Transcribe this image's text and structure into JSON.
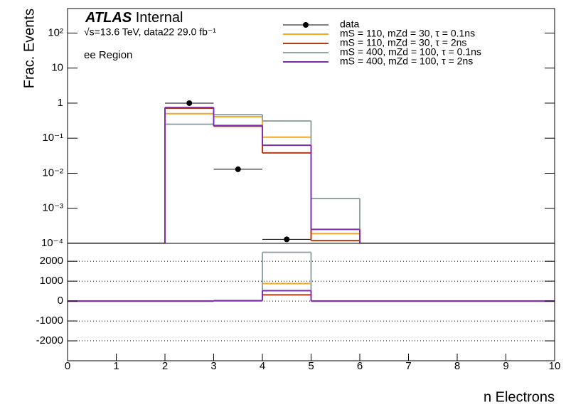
{
  "chart_data": [
    {
      "type": "histogram",
      "atlas_label": "ATLAS",
      "status": "Internal",
      "subtitle": "√s=13.6 TeV, data22 29.0 fb⁻¹",
      "annotation": "ee Region",
      "ylabel": "Frac. Events",
      "log_y": true,
      "legend": "upper right",
      "bins": [
        0,
        1,
        2,
        3,
        4,
        5,
        6,
        7,
        8,
        9,
        10
      ],
      "xlim": [
        0,
        10
      ],
      "ylim": [
        0.0001,
        500
      ],
      "yticks": [
        {
          "value": 0.0001,
          "label": "10⁻⁴"
        },
        {
          "value": 0.001,
          "label": "10⁻³"
        },
        {
          "value": 0.01,
          "label": "10⁻²"
        },
        {
          "value": 0.1,
          "label": "10⁻¹"
        },
        1,
        10,
        {
          "value": 100,
          "label": "10²"
        }
      ],
      "series": [
        {
          "name": "data",
          "color": "#000000",
          "style": "marker",
          "values": [
            null,
            null,
            1,
            0.013,
            0.00013,
            null,
            null,
            null,
            null,
            null
          ]
        },
        {
          "name": "mS = 110, mZd = 30, τ = 0.1ns",
          "color": "#f5a623",
          "style": "step",
          "values": [
            0,
            0,
            0.5,
            0.41,
            0.107,
            0.00019,
            0,
            0,
            0,
            0
          ]
        },
        {
          "name": "mS = 110, mZd = 30, τ = 2ns",
          "color": "#b83a10",
          "style": "step",
          "values": [
            0,
            0,
            0.72,
            0.22,
            0.038,
            0.00012,
            0,
            0,
            0,
            0
          ]
        },
        {
          "name": "mS = 400, mZd = 100, τ = 0.1ns",
          "color": "#95a5a6",
          "style": "step",
          "values": [
            0,
            0,
            0.25,
            0.47,
            0.31,
            0.0019,
            0,
            0,
            0,
            0
          ]
        },
        {
          "name": "mS = 400, mZd = 100, τ = 2ns",
          "color": "#7b2fb0",
          "style": "step",
          "values": [
            0,
            0,
            0.75,
            0.23,
            0.063,
            0.00025,
            0,
            0,
            0,
            0
          ]
        }
      ]
    },
    {
      "type": "histogram",
      "xlabel": "n Electrons",
      "grid": true,
      "bins": [
        0,
        1,
        2,
        3,
        4,
        5,
        6,
        7,
        8,
        9,
        10
      ],
      "xlim": [
        0,
        10
      ],
      "xticks": [
        0,
        1,
        2,
        3,
        4,
        5,
        6,
        7,
        8,
        9,
        10
      ],
      "ylim": [
        -3000,
        2900
      ],
      "yticks": [
        -2000,
        -1000,
        0,
        1000,
        2000
      ],
      "series": [
        {
          "color": "#f5a623",
          "style": "step",
          "values": [
            0,
            0,
            0,
            10,
            880,
            0,
            0,
            0,
            0,
            0
          ]
        },
        {
          "color": "#b83a10",
          "style": "step",
          "values": [
            0,
            0,
            0,
            20,
            310,
            0,
            0,
            0,
            0,
            0
          ]
        },
        {
          "color": "#95a5a6",
          "style": "step",
          "values": [
            0,
            0,
            0,
            10,
            2450,
            0,
            0,
            0,
            0,
            0
          ]
        },
        {
          "color": "#7b2fb0",
          "style": "step",
          "values": [
            0,
            0,
            0,
            20,
            520,
            0,
            0,
            0,
            0,
            0
          ]
        }
      ]
    }
  ]
}
